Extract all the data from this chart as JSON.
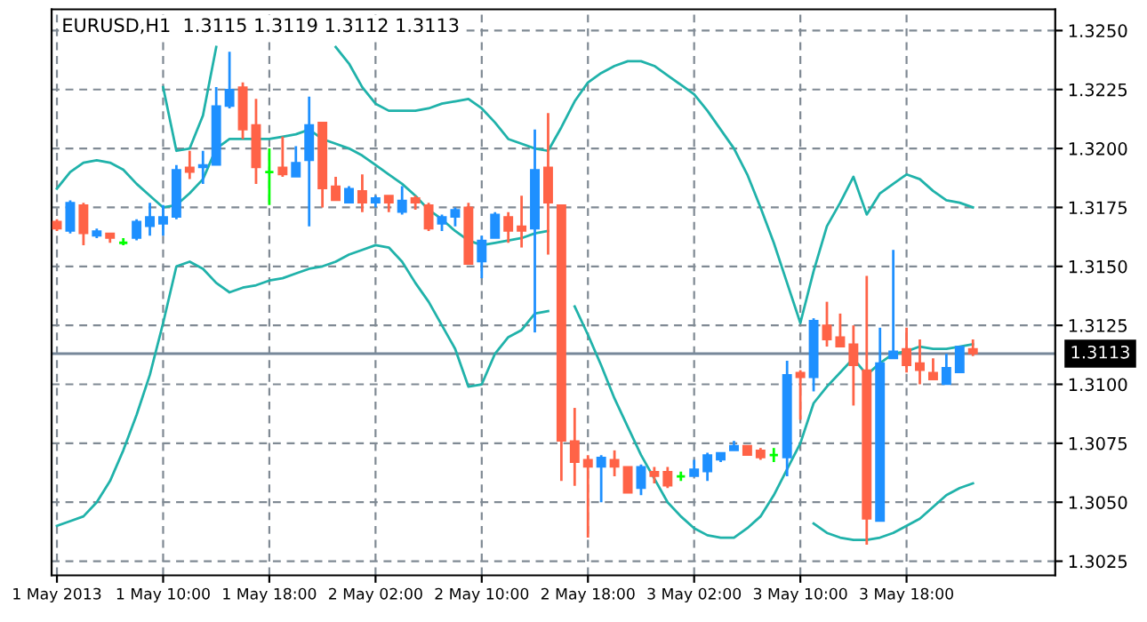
{
  "chart_data": {
    "type": "candlestick",
    "title": "EURUSD,H1  1.3115 1.3119 1.3112 1.3113",
    "categories": [
      "1 May 2013",
      null,
      null,
      null,
      null,
      null,
      null,
      null,
      "1 May 10:00",
      null,
      null,
      null,
      null,
      null,
      null,
      null,
      "1 May 18:00",
      null,
      null,
      null,
      null,
      null,
      null,
      null,
      "2 May 02:00",
      null,
      null,
      null,
      null,
      null,
      null,
      null,
      "2 May 10:00",
      null,
      null,
      null,
      null,
      null,
      null,
      null,
      "2 May 18:00",
      null,
      null,
      null,
      null,
      null,
      null,
      null,
      "3 May 02:00",
      null,
      null,
      null,
      null,
      null,
      null,
      null,
      "3 May 10:00",
      null,
      null,
      null,
      null,
      null,
      null,
      null,
      "3 May 18:00",
      null,
      null,
      null,
      null,
      null
    ],
    "ohlc": [
      [
        1.3169,
        1.317,
        1.3165,
        1.3166
      ],
      [
        1.3165,
        1.3178,
        1.3164,
        1.3177
      ],
      [
        1.3176,
        1.3177,
        1.3159,
        1.3164
      ],
      [
        1.3163,
        1.3166,
        1.3162,
        1.3165
      ],
      [
        1.3164,
        1.3164,
        1.316,
        1.3162
      ],
      [
        1.316,
        1.3162,
        1.3159,
        1.316
      ],
      [
        1.3162,
        1.317,
        1.3161,
        1.3169
      ],
      [
        1.3167,
        1.3177,
        1.3163,
        1.3171
      ],
      [
        1.3168,
        1.3176,
        1.3163,
        1.3171
      ],
      [
        1.3171,
        1.3193,
        1.317,
        1.3191
      ],
      [
        1.3192,
        1.3199,
        1.3187,
        1.319
      ],
      [
        1.3192,
        1.3199,
        1.3185,
        1.3193
      ],
      [
        1.3193,
        1.3226,
        1.3193,
        1.3218
      ],
      [
        1.3218,
        1.3241,
        1.3217,
        1.3225
      ],
      [
        1.3226,
        1.3228,
        1.3204,
        1.3208
      ],
      [
        1.321,
        1.3221,
        1.3185,
        1.3192
      ],
      [
        1.319,
        1.32,
        1.3176,
        1.319
      ],
      [
        1.3192,
        1.3205,
        1.3188,
        1.3189
      ],
      [
        1.3188,
        1.3201,
        1.3188,
        1.3194
      ],
      [
        1.3195,
        1.3222,
        1.3167,
        1.321
      ],
      [
        1.3211,
        1.3211,
        1.3175,
        1.3183
      ],
      [
        1.3184,
        1.3188,
        1.3178,
        1.3178
      ],
      [
        1.3177,
        1.3184,
        1.3177,
        1.3183
      ],
      [
        1.3182,
        1.3189,
        1.3173,
        1.3177
      ],
      [
        1.3177,
        1.318,
        1.3175,
        1.3179
      ],
      [
        1.318,
        1.318,
        1.3173,
        1.3177
      ],
      [
        1.3173,
        1.3184,
        1.3172,
        1.3178
      ],
      [
        1.3179,
        1.318,
        1.3174,
        1.3177
      ],
      [
        1.3176,
        1.3177,
        1.3165,
        1.3166
      ],
      [
        1.3168,
        1.3172,
        1.3165,
        1.3171
      ],
      [
        1.3171,
        1.3175,
        1.3167,
        1.3174
      ],
      [
        1.3175,
        1.3177,
        1.3151,
        1.3151
      ],
      [
        1.3152,
        1.3163,
        1.3145,
        1.3161
      ],
      [
        1.3162,
        1.3173,
        1.3162,
        1.3172
      ],
      [
        1.3171,
        1.3173,
        1.316,
        1.3165
      ],
      [
        1.3167,
        1.318,
        1.3158,
        1.3165
      ],
      [
        1.3166,
        1.3208,
        1.3122,
        1.3191
      ],
      [
        1.3192,
        1.3215,
        1.3155,
        1.3177
      ],
      [
        1.3176,
        1.3176,
        1.3059,
        1.3076
      ],
      [
        1.3076,
        1.309,
        1.3057,
        1.3067
      ],
      [
        1.3068,
        1.307,
        1.3035,
        1.3065
      ],
      [
        1.3065,
        1.307,
        1.305,
        1.3069
      ],
      [
        1.3068,
        1.3072,
        1.3061,
        1.3065
      ],
      [
        1.3065,
        1.3065,
        1.3054,
        1.3054
      ],
      [
        1.3056,
        1.3066,
        1.3053,
        1.3065
      ],
      [
        1.3063,
        1.3065,
        1.3058,
        1.3061
      ],
      [
        1.3063,
        1.3065,
        1.3056,
        1.3057
      ],
      [
        1.3061,
        1.3063,
        1.3059,
        1.3061
      ],
      [
        1.3061,
        1.3068,
        1.3061,
        1.3064
      ],
      [
        1.3063,
        1.3071,
        1.3059,
        1.307
      ],
      [
        1.3068,
        1.3071,
        1.3067,
        1.3071
      ],
      [
        1.3072,
        1.3076,
        1.3072,
        1.3074
      ],
      [
        1.3074,
        1.3074,
        1.307,
        1.307
      ],
      [
        1.3072,
        1.3073,
        1.3068,
        1.3069
      ],
      [
        1.307,
        1.3073,
        1.3067,
        1.307
      ],
      [
        1.3069,
        1.311,
        1.3061,
        1.3104
      ],
      [
        1.3105,
        1.3106,
        1.3085,
        1.3103
      ],
      [
        1.3103,
        1.3128,
        1.3097,
        1.3127
      ],
      [
        1.3125,
        1.3135,
        1.3116,
        1.3119
      ],
      [
        1.312,
        1.313,
        1.3116,
        1.3116
      ],
      [
        1.3117,
        1.3125,
        1.3091,
        1.3108
      ],
      [
        1.3106,
        1.3146,
        1.3032,
        1.3043
      ],
      [
        1.3042,
        1.3124,
        1.3042,
        1.3109
      ],
      [
        1.3111,
        1.3157,
        1.3111,
        1.3114
      ],
      [
        1.3115,
        1.3124,
        1.3105,
        1.3108
      ],
      [
        1.3109,
        1.3119,
        1.31,
        1.3106
      ],
      [
        1.3105,
        1.3111,
        1.3102,
        1.3102
      ],
      [
        1.31,
        1.3113,
        1.31,
        1.3107
      ],
      [
        1.3105,
        1.3116,
        1.3105,
        1.3116
      ],
      [
        1.3115,
        1.3119,
        1.3112,
        1.3113
      ]
    ],
    "colors": [
      "#ff6347",
      "#1e90ff",
      "#ff6347",
      "#1e90ff",
      "#ff6347",
      "#00ff00",
      "#1e90ff",
      "#1e90ff",
      "#1e90ff",
      "#1e90ff",
      "#ff6347",
      "#1e90ff",
      "#1e90ff",
      "#1e90ff",
      "#ff6347",
      "#ff6347",
      "#00ff00",
      "#ff6347",
      "#1e90ff",
      "#1e90ff",
      "#ff6347",
      "#ff6347",
      "#1e90ff",
      "#ff6347",
      "#1e90ff",
      "#ff6347",
      "#1e90ff",
      "#ff6347",
      "#ff6347",
      "#1e90ff",
      "#1e90ff",
      "#ff6347",
      "#1e90ff",
      "#1e90ff",
      "#ff6347",
      "#ff6347",
      "#1e90ff",
      "#ff6347",
      "#ff6347",
      "#ff6347",
      "#ff6347",
      "#1e90ff",
      "#ff6347",
      "#ff6347",
      "#1e90ff",
      "#ff6347",
      "#ff6347",
      "#00ff00",
      "#1e90ff",
      "#1e90ff",
      "#1e90ff",
      "#1e90ff",
      "#ff6347",
      "#ff6347",
      "#00ff00",
      "#1e90ff",
      "#ff6347",
      "#1e90ff",
      "#ff6347",
      "#ff6347",
      "#ff6347",
      "#ff6347",
      "#1e90ff",
      "#1e90ff",
      "#ff6347",
      "#ff6347",
      "#ff6347",
      "#1e90ff",
      "#1e90ff",
      "#ff6347"
    ],
    "series": [
      {
        "type": "line",
        "color": "#20b2aa",
        "values": [
          null,
          null,
          null,
          null,
          null,
          null,
          null,
          null,
          1.3226,
          1.3199,
          1.32,
          1.3214,
          1.3243,
          null,
          null,
          null,
          null,
          null,
          null,
          null,
          null,
          1.3243,
          1.3236,
          1.3226,
          1.3219,
          1.3216,
          1.3216,
          1.3216,
          1.3217,
          1.3219,
          1.322,
          1.3221,
          1.3217,
          1.3211,
          1.3204,
          1.3202,
          1.32,
          1.3199,
          1.3209,
          1.322,
          1.3228,
          1.3232,
          1.3235,
          1.3237,
          1.3237,
          1.3235,
          1.3231,
          1.3227,
          1.3223,
          1.3216,
          1.3208,
          1.32,
          1.3189,
          1.3175,
          1.316,
          1.3143,
          1.3126,
          1.3148,
          1.3167,
          1.3177,
          1.3188,
          1.3172,
          1.3181,
          1.3185,
          1.3189,
          1.3187,
          1.3182,
          1.3178,
          1.3177,
          1.3175
        ]
      },
      {
        "type": "line",
        "color": "#20b2aa",
        "values": [
          1.3183,
          1.319,
          1.3194,
          1.3195,
          1.3194,
          1.3191,
          1.3185,
          1.318,
          1.3175,
          1.3176,
          1.3181,
          1.3187,
          1.32,
          1.3204,
          1.3204,
          1.3204,
          1.3204,
          1.3205,
          1.3206,
          1.3208,
          1.3204,
          1.3202,
          1.32,
          1.3197,
          1.3193,
          1.3189,
          1.3185,
          1.318,
          1.3174,
          1.317,
          1.3165,
          1.3161,
          1.3159,
          1.316,
          1.3161,
          1.3162,
          1.3164,
          1.3165,
          null,
          1.3133,
          1.3121,
          1.3108,
          1.3094,
          1.3082,
          1.307,
          1.306,
          1.305,
          1.3044,
          1.3039,
          1.3036,
          1.3035,
          1.3035,
          1.3039,
          1.3044,
          1.3053,
          1.3064,
          1.3075,
          1.3092,
          1.3099,
          1.3105,
          1.3111,
          1.3104,
          1.3109,
          1.3113,
          1.3114,
          1.3116,
          1.3115,
          1.3115,
          1.3116,
          1.3117
        ]
      },
      {
        "type": "line",
        "color": "#20b2aa",
        "values": [
          1.304,
          1.3042,
          1.3044,
          1.305,
          1.3059,
          1.3072,
          1.3087,
          1.3104,
          1.3126,
          1.315,
          1.3152,
          1.3149,
          1.3143,
          1.3139,
          1.3141,
          1.3142,
          1.3144,
          1.3145,
          1.3147,
          1.3149,
          1.315,
          1.3152,
          1.3155,
          1.3157,
          1.3159,
          1.3158,
          1.3152,
          1.3143,
          1.3135,
          1.3125,
          1.3115,
          1.3099,
          1.31,
          1.3113,
          1.312,
          1.3123,
          1.313,
          1.3131,
          null,
          null,
          null,
          null,
          null,
          null,
          null,
          null,
          null,
          null,
          null,
          null,
          null,
          null,
          null,
          null,
          null,
          null,
          null,
          1.3041,
          1.3037,
          1.3035,
          1.3034,
          1.3034,
          1.3035,
          1.3037,
          1.304,
          1.3043,
          1.3048,
          1.3053,
          1.3056,
          1.3058
        ]
      }
    ],
    "ylim": [
      1.3019,
      1.3259
    ],
    "yticks": [
      {
        "value": 1.3025,
        "label": "1.3025"
      },
      {
        "value": 1.305,
        "label": "1.3050"
      },
      {
        "value": 1.3075,
        "label": "1.3075"
      },
      {
        "value": 1.31,
        "label": "1.3100"
      },
      {
        "value": 1.3125,
        "label": "1.3125"
      },
      {
        "value": 1.315,
        "label": "1.3150"
      },
      {
        "value": 1.3175,
        "label": "1.3175"
      },
      {
        "value": 1.32,
        "label": "1.3200"
      },
      {
        "value": 1.3225,
        "label": "1.3225"
      },
      {
        "value": 1.325,
        "label": "1.3250"
      }
    ],
    "ref_lines": [
      {
        "axis": "y",
        "value": 1.3113,
        "label": "1.3113",
        "color": "#778899"
      }
    ],
    "grid": true
  }
}
